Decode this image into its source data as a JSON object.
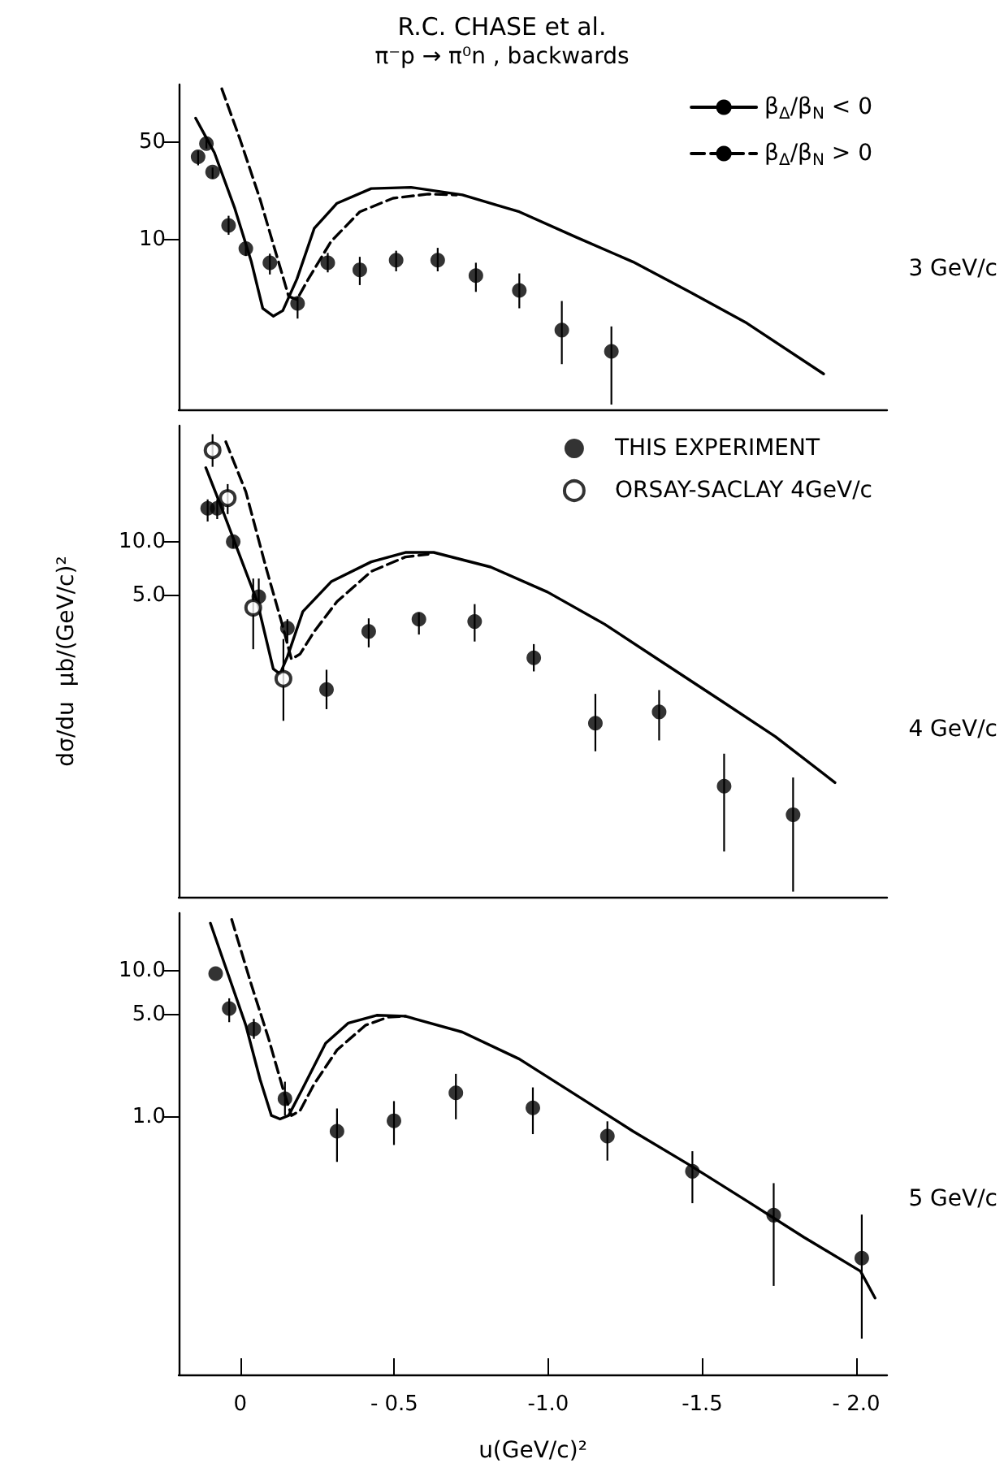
{
  "chart_data": [
    {
      "type": "line",
      "title": "R.C. CHASE et al.",
      "subtitle": "π⁻p → π⁰n , backwards",
      "annotations": [
        "3 GeV/c"
      ],
      "legend": "top right",
      "log": "y",
      "tick_labels": "y",
      "grid": false,
      "xlim": [
        0.2,
        -2.1
      ],
      "ylim": [
        0.6,
        130
      ],
      "yticks": [
        10,
        50
      ],
      "series": [
        {
          "type": "line",
          "name": "β$_{Δ}$/β$_{N}$ < 0",
          "color": "#000000",
          "line_style": "solid",
          "marker": "none",
          "x": [
            0.145,
            0.084,
            0.019,
            -0.036,
            -0.073,
            -0.107,
            -0.138,
            -0.184,
            -0.24,
            -0.314,
            -0.425,
            -0.554,
            -0.721,
            -0.906,
            -1.09,
            -1.275,
            -1.459,
            -1.645,
            -1.894
          ],
          "values": [
            74.4,
            42,
            17,
            6.9,
            3.19,
            2.81,
            3.08,
            5.2,
            12,
            18.2,
            23.2,
            23.7,
            20.9,
            15.8,
            10.4,
            6.9,
            4.2,
            2.5,
            1.08
          ]
        },
        {
          "type": "line",
          "name": "β$_{Δ}$/β$_{N}$ > 0",
          "color": "#000000",
          "line_style": "dashed",
          "marker": "none",
          "x": [
            0.06,
            0,
            -0.064,
            -0.12,
            -0.157,
            -0.184,
            -0.221,
            -0.295,
            -0.388,
            -0.496,
            -0.61,
            -0.702
          ],
          "values": [
            121,
            51.8,
            19.5,
            7.4,
            3.9,
            3.7,
            5.2,
            9.7,
            15.8,
            19.8,
            21.2,
            20.9
          ]
        },
        {
          "type": "scatter",
          "color": "#000000",
          "marker": "circle",
          "x": [
            0.137,
            0.11,
            0.09,
            0.038,
            -0.018,
            -0.096,
            -0.186,
            -0.284,
            -0.388,
            -0.506,
            -0.641,
            -0.765,
            -0.906,
            -1.044,
            -1.205
          ],
          "values": [
            39.3,
            48.9,
            30.5,
            12.6,
            8.6,
            6.8,
            3.47,
            6.8,
            6.05,
            7.1,
            7.1,
            5.5,
            4.3,
            2.23,
            1.57
          ],
          "errors": [
            [
              34.1,
              43.5
            ],
            [
              45,
              52.6
            ],
            [
              27.3,
              32.9
            ],
            [
              10.8,
              14.8
            ],
            [
              7.6,
              9.4
            ],
            [
              5.6,
              7.9
            ],
            [
              2.7,
              3.9
            ],
            [
              5.8,
              8.0
            ],
            [
              4.7,
              7.5
            ],
            [
              5.9,
              8.3
            ],
            [
              5.9,
              8.7
            ],
            [
              4.2,
              6.8
            ],
            [
              3.2,
              5.7
            ],
            [
              1.27,
              3.61
            ],
            [
              0.65,
              2.37
            ]
          ]
        }
      ]
    },
    {
      "type": "line",
      "ylabel": "dσ/du  μb/(GeV/c)²",
      "annotations": [
        "4 GeV/c"
      ],
      "legend": "top right",
      "log": "y",
      "tick_labels": "y",
      "grid": false,
      "xlim": [
        0.2,
        -2.1
      ],
      "ylim": [
        0.1,
        45
      ],
      "yticks": [
        {
          "value": 10,
          "label": "10.0"
        },
        {
          "value": 5,
          "label": "5.0"
        }
      ],
      "series": [
        {
          "type": "line",
          "color": "#000000",
          "line_style": "solid",
          "marker": "none",
          "x": [
            0.112,
            0.056,
            0,
            -0.055,
            -0.107,
            -0.129,
            -0.153,
            -0.203,
            -0.295,
            -0.425,
            -0.536,
            -0.628,
            -0.813,
            -0.998,
            -1.183,
            -1.368,
            -1.553,
            -1.737,
            -1.931
          ],
          "values": [
            26.1,
            14.8,
            8.2,
            4.6,
            1.92,
            1.8,
            2.25,
            4.04,
            5.95,
            7.7,
            8.7,
            8.7,
            7.2,
            5.2,
            3.43,
            2.11,
            1.3,
            0.8,
            0.44
          ]
        },
        {
          "type": "line",
          "color": "#000000",
          "line_style": "dashed",
          "marker": "none",
          "x": [
            0.047,
            -0.018,
            -0.083,
            -0.138,
            -0.166,
            -0.194,
            -0.24,
            -0.314,
            -0.425,
            -0.536,
            -0.61
          ],
          "values": [
            36.5,
            19.1,
            7.2,
            3.33,
            2.18,
            2.33,
            3.12,
            4.6,
            6.8,
            8.2,
            8.5
          ]
        },
        {
          "type": "scatter",
          "name": "THIS EXPERIMENT",
          "color": "#000000",
          "marker": "circle",
          "x": [
            0.106,
            0.075,
            0.023,
            -0.06,
            -0.153,
            -0.28,
            -0.417,
            -0.58,
            -0.761,
            -0.953,
            -1.153,
            -1.36,
            -1.571,
            -1.795
          ],
          "values": [
            15.4,
            15.4,
            10.0,
            4.9,
            3.26,
            1.47,
            3.12,
            3.66,
            3.55,
            2.22,
            0.95,
            1.1,
            0.42,
            0.29
          ],
          "errors": [
            [
              13,
              17.3
            ],
            [
              13.4,
              17.3
            ],
            [
              9.2,
              10.7
            ],
            [
              4.2,
              6.2
            ],
            [
              2.74,
              3.66
            ],
            [
              1.14,
              1.9
            ],
            [
              2.54,
              3.7
            ],
            [
              3.0,
              4.0
            ],
            [
              2.74,
              4.45
            ],
            [
              1.86,
              2.65
            ],
            [
              0.66,
              1.39
            ],
            [
              0.76,
              1.46
            ],
            [
              0.18,
              0.64
            ],
            [
              0.107,
              0.47
            ]
          ]
        },
        {
          "type": "scatter",
          "name": "ORSAY-SACLAY 4GeV/c",
          "color": "#000000",
          "marker": "circle-open",
          "x": [
            0.09,
            0.041,
            -0.042,
            -0.14
          ],
          "values": [
            32.7,
            17.6,
            4.25,
            1.69
          ],
          "errors": [
            [
              26.4,
              40.3
            ],
            [
              14.3,
              21.1
            ],
            [
              2.48,
              6.2
            ],
            [
              0.98,
              2.83
            ]
          ]
        }
      ]
    },
    {
      "type": "line",
      "xlabel": "u(GeV/c)²",
      "annotations": [
        "5 GeV/c"
      ],
      "log": "y",
      "grid": false,
      "xlim": [
        0.2,
        -2.1
      ],
      "xticks": [
        {
          "value": 0,
          "label": "0"
        },
        {
          "value": -0.5,
          "label": "- 0.5"
        },
        {
          "value": -1.0,
          "label": "-1.0"
        },
        {
          "value": -1.5,
          "label": "-1.5"
        },
        {
          "value": -2.0,
          "label": "- 2.0"
        }
      ],
      "ylim": [
        0.017,
        25
      ],
      "yticks": [
        {
          "value": 10,
          "label": "10.0"
        },
        {
          "value": 5,
          "label": "5.0"
        },
        {
          "value": 1,
          "label": "1.0"
        }
      ],
      "series": [
        {
          "type": "line",
          "color": "#000000",
          "line_style": "solid",
          "marker": "none",
          "x": [
            0.097,
            0.038,
            -0.018,
            -0.064,
            -0.101,
            -0.129,
            -0.157,
            -0.203,
            -0.277,
            -0.351,
            -0.443,
            -0.536,
            -0.721,
            -0.906,
            -1.09,
            -1.275,
            -1.459,
            -1.645,
            -1.83,
            -2.014,
            -2.061
          ],
          "values": [
            21.3,
            9.3,
            4.24,
            1.81,
            1.02,
            0.965,
            1.02,
            1.57,
            3.19,
            4.4,
            4.97,
            4.9,
            3.81,
            2.49,
            1.41,
            0.796,
            0.466,
            0.264,
            0.149,
            0.087,
            0.057
          ]
        },
        {
          "type": "line",
          "color": "#000000",
          "line_style": "dashed",
          "marker": "none",
          "x": [
            0.028,
            -0.036,
            -0.092,
            -0.138,
            -0.166,
            -0.194,
            -0.24,
            -0.314,
            -0.406,
            -0.48,
            -0.536
          ],
          "values": [
            22.6,
            8.05,
            3.43,
            1.57,
            1.02,
            1.1,
            1.68,
            2.87,
            4.24,
            4.83,
            4.9
          ]
        },
        {
          "type": "scatter",
          "color": "#000000",
          "marker": "circle",
          "x": [
            0.08,
            0.036,
            -0.044,
            -0.145,
            -0.314,
            -0.499,
            -0.7,
            -0.95,
            -1.192,
            -1.468,
            -1.732,
            -2.018
          ],
          "values": [
            9.6,
            5.53,
            4.0,
            1.33,
            0.796,
            0.938,
            1.46,
            1.15,
            0.736,
            0.422,
            0.211,
            0.107
          ],
          "errors": [
            null,
            [
              4.46,
              6.5
            ],
            [
              3.43,
              4.7
            ],
            [
              1.02,
              1.74
            ],
            [
              0.49,
              1.14
            ],
            [
              0.64,
              1.28
            ],
            [
              0.96,
              1.97
            ],
            [
              0.76,
              1.59
            ],
            [
              0.5,
              0.93
            ],
            [
              0.255,
              0.58
            ],
            [
              0.069,
              0.35
            ],
            [
              0.03,
              0.213
            ]
          ]
        }
      ]
    }
  ]
}
